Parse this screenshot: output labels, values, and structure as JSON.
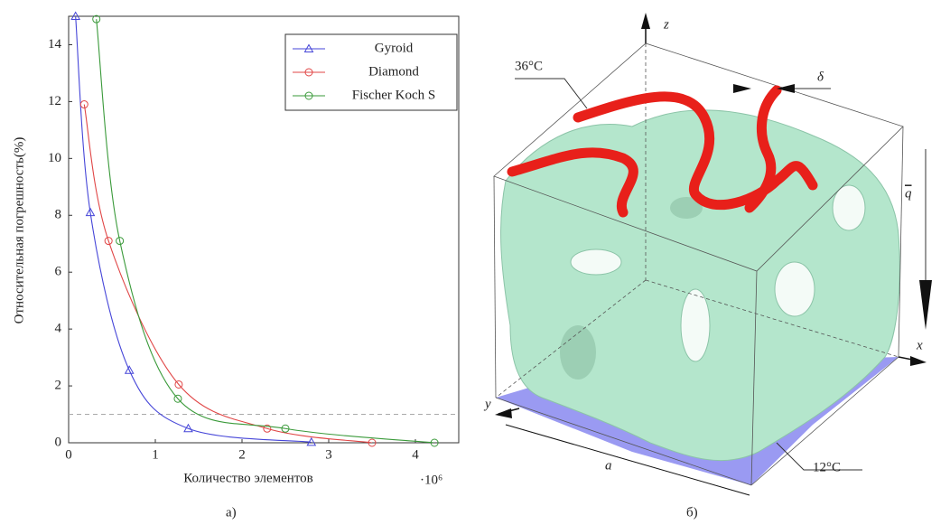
{
  "chart_data": {
    "type": "line",
    "x_label": "Количество элементов",
    "x_multiplier": "·10⁶",
    "y_label": "Относительная погрешность(%)",
    "xlim": [
      0,
      4.5
    ],
    "ylim": [
      0,
      15
    ],
    "xticks": [
      0,
      1,
      2,
      3,
      4
    ],
    "yticks": [
      0,
      2,
      4,
      6,
      8,
      10,
      12,
      14
    ],
    "reference_line": 1,
    "legend": "upper right",
    "series": [
      {
        "name": "Gyroid",
        "color": "#4545d8",
        "marker": "triangle",
        "x": [
          0.08,
          0.25,
          0.7,
          1.38,
          2.8
        ],
        "values": [
          15,
          8.1,
          2.55,
          0.5,
          0.02
        ]
      },
      {
        "name": "Diamond",
        "color": "#e04545",
        "marker": "circle",
        "x": [
          0.18,
          0.46,
          1.27,
          2.29,
          3.5
        ],
        "values": [
          11.9,
          7.1,
          2.05,
          0.5,
          0.0
        ]
      },
      {
        "name": "Fischer Koch S",
        "color": "#3a9a3a",
        "marker": "circle",
        "x": [
          0.32,
          0.59,
          1.26,
          2.5,
          4.22
        ],
        "values": [
          14.9,
          7.1,
          1.55,
          0.5,
          0.0
        ]
      }
    ]
  },
  "figure": {
    "caption_left": "а)",
    "caption_right": "б)",
    "labels": {
      "z": "z",
      "x": "x",
      "y": "y",
      "q": "q",
      "delta": "δ",
      "top_temp": "36°C",
      "bottom_temp": "12°C",
      "edge": "a"
    }
  }
}
